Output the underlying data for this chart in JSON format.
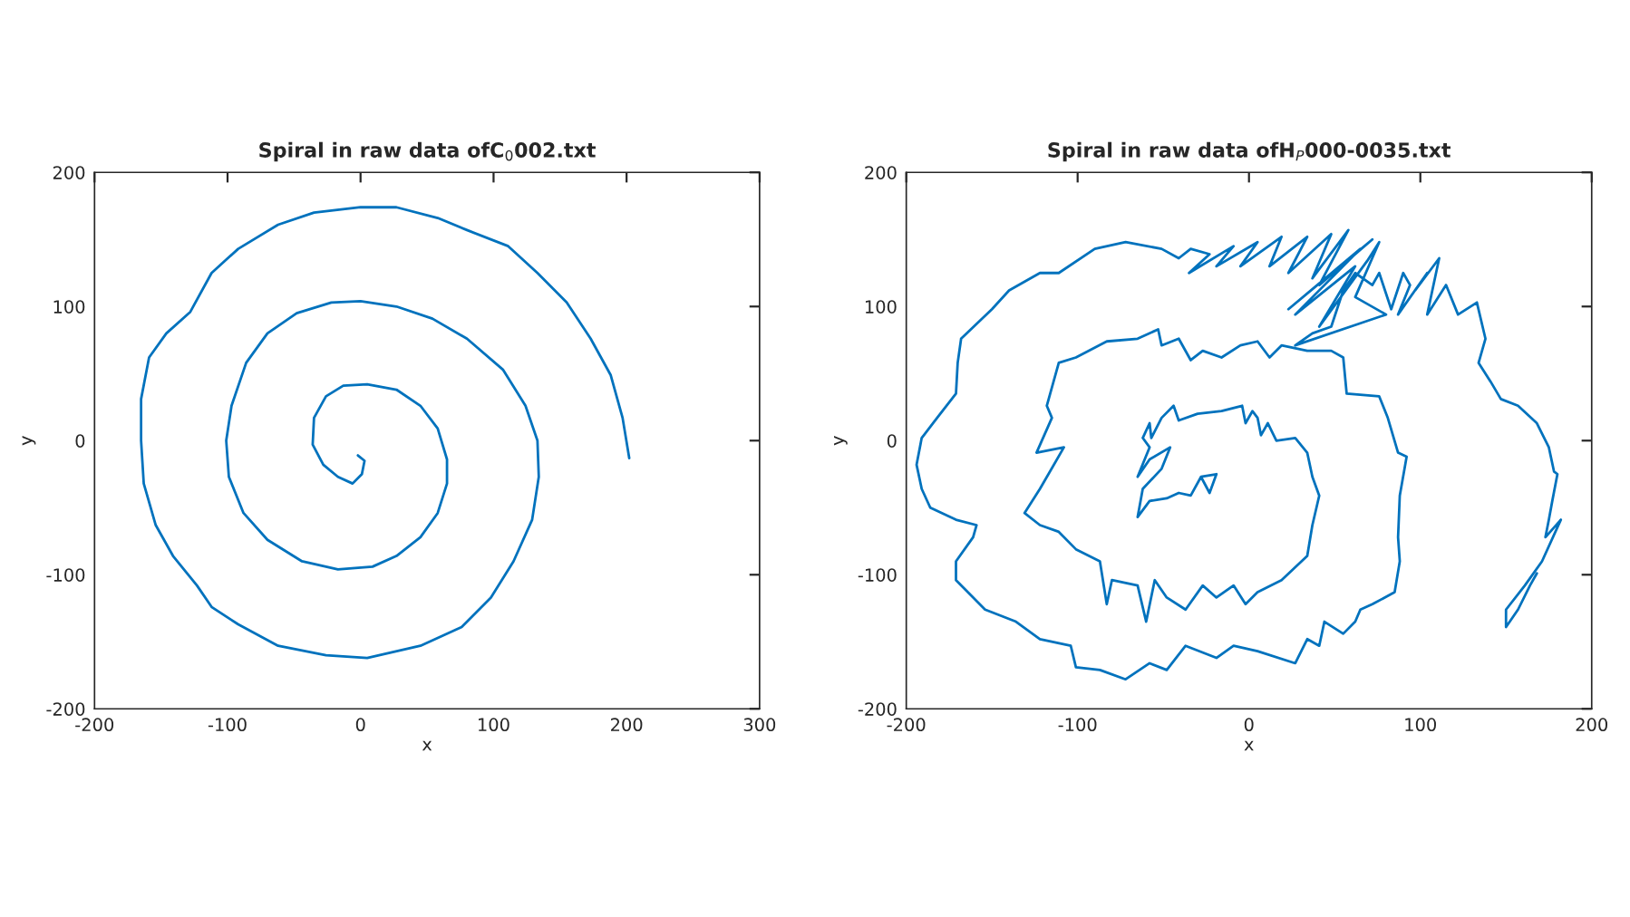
{
  "chart_data": [
    {
      "type": "line",
      "title": "Spiral in raw data ofC$_{0}$002.txt",
      "xlabel": "x",
      "ylabel": "y",
      "xlim": [
        -200,
        300
      ],
      "ylim": [
        -200,
        200
      ],
      "xticks": [
        -200,
        -100,
        0,
        100,
        200,
        300
      ],
      "yticks": [
        -200,
        -100,
        0,
        100,
        200
      ],
      "grid": false,
      "legend": false,
      "series": [
        {
          "color": "#0072bd",
          "x": [
            -2,
            3,
            1,
            -6,
            -17,
            -28,
            -36,
            -35,
            -26,
            -13,
            5,
            27,
            45,
            58,
            65,
            65,
            58,
            45,
            27,
            9,
            -17,
            -44,
            -70,
            -88,
            -99,
            -101,
            -97,
            -86,
            -70,
            -48,
            -22,
            0,
            27,
            54,
            80,
            107,
            124,
            133,
            134,
            129,
            115,
            98,
            76,
            45,
            5,
            -26,
            -62,
            -92,
            -112,
            -123,
            -141,
            -154,
            -163,
            -165,
            -165,
            -159,
            -146,
            -128,
            -112,
            -92,
            -62,
            -35,
            0,
            27,
            58,
            80,
            111,
            133,
            155,
            173,
            188,
            197,
            202
          ],
          "values": [
            -11,
            -15,
            -25,
            -32,
            -27,
            -18,
            -3,
            17,
            33,
            41,
            42,
            38,
            26,
            9,
            -14,
            -32,
            -54,
            -72,
            -86,
            -94,
            -96,
            -90,
            -74,
            -54,
            -27,
            0,
            26,
            58,
            80,
            95,
            103,
            104,
            100,
            91,
            76,
            53,
            26,
            0,
            -27,
            -59,
            -90,
            -117,
            -139,
            -153,
            -162,
            -160,
            -153,
            -137,
            -124,
            -108,
            -86,
            -63,
            -32,
            0,
            31,
            62,
            80,
            96,
            125,
            143,
            161,
            170,
            174,
            174,
            166,
            157,
            145,
            125,
            103,
            76,
            49,
            17,
            -13
          ]
        }
      ]
    },
    {
      "type": "line",
      "title": "Spiral in raw data ofH$_{P}$000-0035.txt",
      "xlabel": "x",
      "ylabel": "y",
      "xlim": [
        -200,
        200
      ],
      "ylim": [
        -200,
        200
      ],
      "xticks": [
        -200,
        -100,
        0,
        100,
        200
      ],
      "yticks": [
        -200,
        -100,
        0,
        100,
        200
      ],
      "grid": false,
      "legend": false,
      "series": [
        {
          "color": "#0072bd",
          "x": [
            -28,
            -19,
            -23,
            -28,
            -34,
            -41,
            -48,
            -58,
            -65,
            -62,
            -51,
            -46,
            -58,
            -65,
            -58,
            -62,
            -58,
            -57,
            -51,
            -44,
            -41,
            -30,
            -16,
            -4,
            -2,
            2,
            5,
            7,
            11,
            16,
            27,
            34,
            37,
            41,
            37,
            34,
            19,
            5,
            -2,
            -9,
            -19,
            -27,
            -37,
            -48,
            -55,
            -60,
            -65,
            -80,
            -83,
            -87,
            -101,
            -111,
            -122,
            -131,
            -122,
            -108,
            -124,
            -115,
            -118,
            -111,
            -101,
            -83,
            -65,
            -53,
            -51,
            -41,
            -34,
            -27,
            -16,
            -5,
            5,
            12,
            19,
            34,
            48,
            55,
            57,
            76,
            81,
            87,
            92,
            88,
            87,
            88,
            85,
            72,
            65,
            62,
            55,
            44,
            41,
            34,
            27,
            5,
            -9,
            -19,
            -37,
            -48,
            -58,
            -72,
            -87,
            -101,
            -104,
            -122,
            -136,
            -154,
            -171,
            -171,
            -161,
            -159,
            -171,
            -186,
            -191,
            -194,
            -191,
            -182,
            -171,
            -170,
            -168,
            -150,
            -140,
            -122,
            -111,
            -90,
            -72,
            -51,
            -41,
            -34,
            -23,
            -35,
            -9,
            -19,
            5,
            -5,
            19,
            12,
            34,
            23,
            48,
            37,
            58,
            41,
            72,
            23,
            65,
            27,
            62,
            41,
            69,
            76,
            62,
            80,
            27,
            37,
            48,
            55,
            62,
            72,
            76,
            83,
            90,
            94,
            87,
            104,
            97,
            111,
            104,
            115,
            122,
            133,
            138,
            134,
            141,
            147,
            157,
            168,
            175,
            178,
            180,
            177,
            175,
            173,
            182,
            171,
            161,
            150,
            150,
            157,
            164,
            168
          ],
          "values": [
            -27,
            -25,
            -39,
            -27,
            -41,
            -39,
            -43,
            -45,
            -57,
            -36,
            -21,
            -5,
            -14,
            -27,
            -5,
            2,
            13,
            2,
            17,
            26,
            15,
            20,
            22,
            26,
            13,
            22,
            17,
            4,
            13,
            0,
            2,
            -9,
            -27,
            -41,
            -63,
            -86,
            -104,
            -113,
            -122,
            -108,
            -117,
            -108,
            -126,
            -117,
            -104,
            -135,
            -108,
            -104,
            -122,
            -90,
            -81,
            -68,
            -63,
            -54,
            -36,
            -5,
            -9,
            17,
            26,
            58,
            62,
            74,
            76,
            83,
            71,
            76,
            60,
            67,
            62,
            71,
            74,
            62,
            71,
            67,
            67,
            62,
            35,
            33,
            17,
            -9,
            -12,
            -41,
            -72,
            -90,
            -113,
            -122,
            -126,
            -135,
            -144,
            -135,
            -153,
            -148,
            -166,
            -157,
            -153,
            -162,
            -153,
            -171,
            -166,
            -178,
            -171,
            -169,
            -153,
            -148,
            -135,
            -126,
            -104,
            -90,
            -72,
            -63,
            -59,
            -50,
            -36,
            -18,
            2,
            17,
            35,
            58,
            76,
            98,
            112,
            125,
            125,
            143,
            148,
            143,
            136,
            143,
            139,
            125,
            145,
            130,
            148,
            130,
            152,
            130,
            152,
            125,
            154,
            121,
            157,
            116,
            150,
            98,
            143,
            94,
            130,
            85,
            134,
            148,
            107,
            94,
            71,
            80,
            85,
            112,
            125,
            116,
            125,
            98,
            125,
            116,
            94,
            125,
            112,
            136,
            94,
            116,
            94,
            103,
            76,
            58,
            44,
            31,
            26,
            13,
            -5,
            -23,
            -25,
            -45,
            -59,
            -72,
            -59,
            -90,
            -108,
            -126,
            -139,
            -126,
            -108,
            -99
          ]
        }
      ]
    }
  ]
}
